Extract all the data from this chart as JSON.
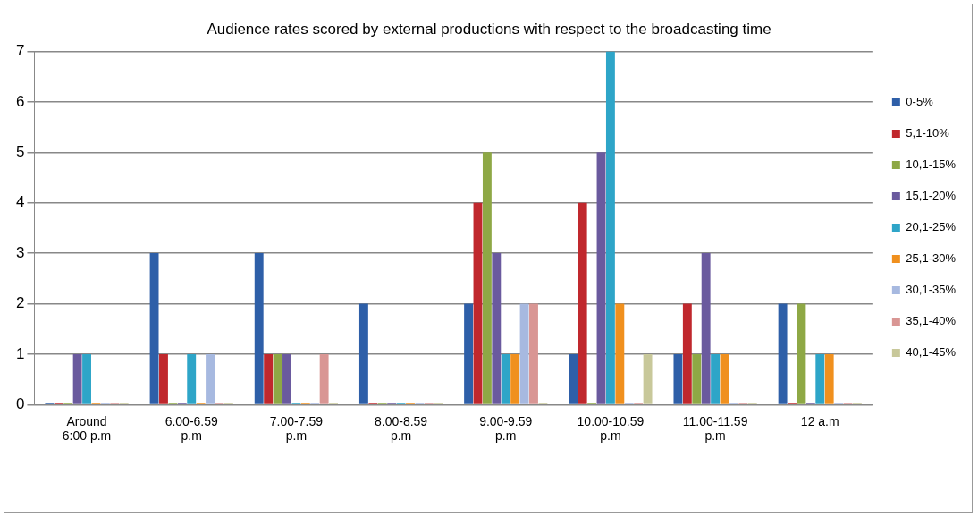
{
  "chart_data": {
    "type": "bar",
    "title": "Audience rates scored by external productions with respect to the broadcasting time",
    "categories": [
      "Around 6:00 p.m",
      "6.00-6.59 p.m",
      "7.00-7.59 p.m",
      "8.00-8.59 p.m",
      "9.00-9.59 p.m",
      "10.00-10.59 p.m",
      "11.00-11.59 p.m",
      "12 a.m"
    ],
    "series": [
      {
        "name": "0-5%",
        "color": "#2e5fa8",
        "values": [
          0,
          3,
          3,
          2,
          2,
          1,
          1,
          2
        ]
      },
      {
        "name": "5,1-10%",
        "color": "#c0282d",
        "values": [
          0,
          1,
          1,
          0,
          4,
          4,
          2,
          0
        ]
      },
      {
        "name": "10,1-15%",
        "color": "#8ea845",
        "values": [
          0,
          0,
          1,
          0,
          5,
          0,
          1,
          2
        ]
      },
      {
        "name": "15,1-20%",
        "color": "#6a5a9e",
        "values": [
          1,
          0,
          1,
          0,
          3,
          5,
          3,
          0
        ]
      },
      {
        "name": "20,1-25%",
        "color": "#2ea5c8",
        "values": [
          1,
          1,
          0,
          0,
          1,
          7,
          1,
          1
        ]
      },
      {
        "name": "25,1-30%",
        "color": "#f0901e",
        "values": [
          0,
          0,
          0,
          0,
          1,
          2,
          1,
          1
        ]
      },
      {
        "name": "30,1-35%",
        "color": "#a7b9e0",
        "values": [
          0,
          1,
          0,
          0,
          2,
          0,
          0,
          0
        ]
      },
      {
        "name": "35,1-40%",
        "color": "#d99694",
        "values": [
          0,
          0,
          1,
          0,
          2,
          0,
          0,
          0
        ]
      },
      {
        "name": "40,1-45%",
        "color": "#c8c89a",
        "values": [
          0,
          0,
          0,
          0,
          0,
          1,
          0,
          0
        ]
      }
    ],
    "ylim": [
      0,
      7
    ],
    "yticks": [
      0,
      1,
      2,
      3,
      4,
      5,
      6,
      7
    ],
    "grid": "y",
    "legend": "right"
  }
}
